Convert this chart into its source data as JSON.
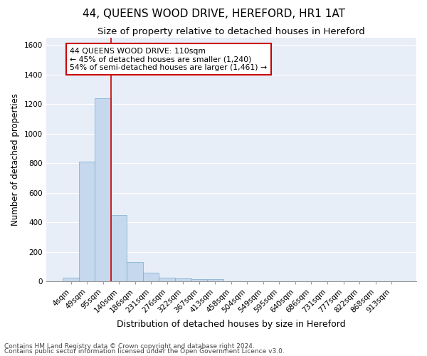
{
  "title": "44, QUEENS WOOD DRIVE, HEREFORD, HR1 1AT",
  "subtitle": "Size of property relative to detached houses in Hereford",
  "xlabel": "Distribution of detached houses by size in Hereford",
  "ylabel": "Number of detached properties",
  "footnote1": "Contains HM Land Registry data © Crown copyright and database right 2024.",
  "footnote2": "Contains public sector information licensed under the Open Government Licence v3.0.",
  "categories": [
    "4sqm",
    "49sqm",
    "95sqm",
    "140sqm",
    "186sqm",
    "231sqm",
    "276sqm",
    "322sqm",
    "367sqm",
    "413sqm",
    "458sqm",
    "504sqm",
    "549sqm",
    "595sqm",
    "640sqm",
    "686sqm",
    "731sqm",
    "777sqm",
    "822sqm",
    "868sqm",
    "913sqm"
  ],
  "values": [
    25,
    810,
    1240,
    450,
    130,
    60,
    25,
    20,
    15,
    15,
    0,
    0,
    0,
    0,
    0,
    0,
    0,
    0,
    0,
    0,
    0
  ],
  "bar_color": "#c5d8ed",
  "bar_edge_color": "#7aaacb",
  "background_color": "#e8eef8",
  "grid_color": "#ffffff",
  "red_line_x": 2.5,
  "annotation_line1": "44 QUEENS WOOD DRIVE: 110sqm",
  "annotation_line2": "← 45% of detached houses are smaller (1,240)",
  "annotation_line3": "54% of semi-detached houses are larger (1,461) →",
  "ann_box_color": "white",
  "ann_edge_color": "#cc0000",
  "ylim": [
    0,
    1650
  ],
  "yticks": [
    0,
    200,
    400,
    600,
    800,
    1000,
    1200,
    1400,
    1600
  ],
  "title_fontsize": 11,
  "subtitle_fontsize": 9.5,
  "xlabel_fontsize": 9,
  "ylabel_fontsize": 8.5,
  "tick_fontsize": 7.5,
  "ann_fontsize": 7.8,
  "footnote_fontsize": 6.5
}
